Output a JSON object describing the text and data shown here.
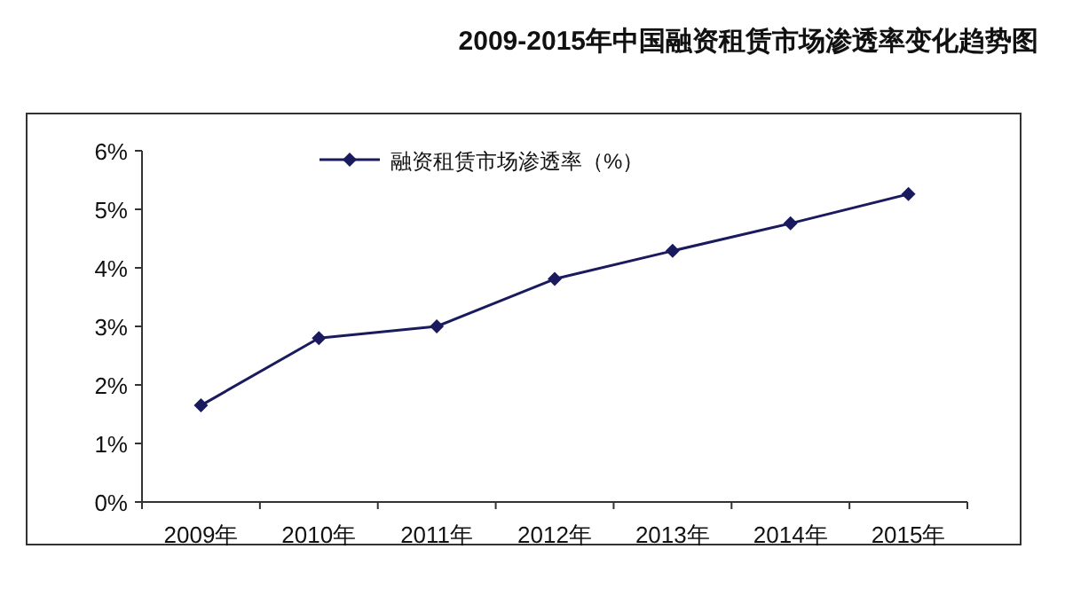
{
  "chart_data": {
    "type": "line",
    "title": "2009-2015年中国融资租赁市场渗透率变化趋势图",
    "categories": [
      "2009年",
      "2010年",
      "2011年",
      "2012年",
      "2013年",
      "2014年",
      "2015年"
    ],
    "series": [
      {
        "name": "融资租赁市场渗透率（%）",
        "color": "#1a1a5e",
        "values": [
          1.65,
          2.8,
          3.0,
          3.81,
          4.29,
          4.76,
          5.26
        ]
      }
    ],
    "ylim": [
      0,
      6
    ],
    "yticks": [
      {
        "value": 0,
        "label": "0%"
      },
      {
        "value": 1,
        "label": "1%"
      },
      {
        "value": 2,
        "label": "2%"
      },
      {
        "value": 3,
        "label": "3%"
      },
      {
        "value": 4,
        "label": "4%"
      },
      {
        "value": 5,
        "label": "5%"
      },
      {
        "value": 6,
        "label": "6%"
      }
    ],
    "marker": "diamond",
    "legend": "top",
    "grid": false
  }
}
